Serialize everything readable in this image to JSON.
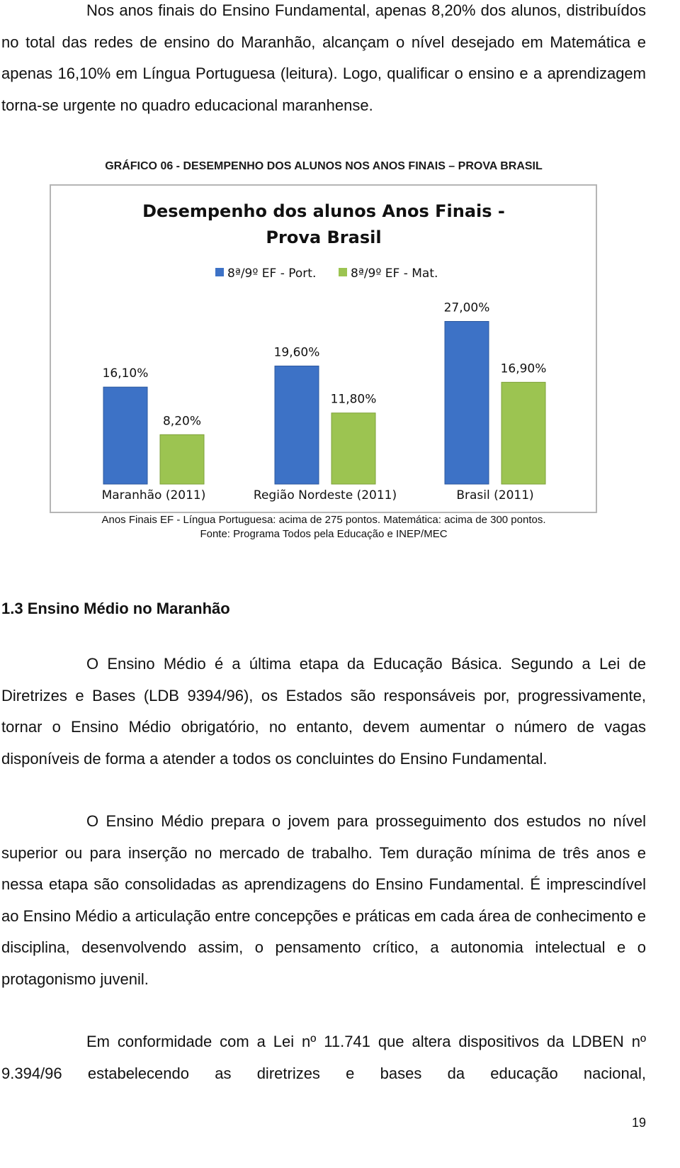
{
  "intro": "Nos anos finais do Ensino Fundamental, apenas 8,20% dos alunos, distribuídos no total das redes de ensino do Maranhão, alcançam o nível desejado em Matemática e apenas 16,10% em Língua Portuguesa (leitura). Logo, qualificar o ensino e a aprendizagem torna-se urgente no quadro educacional maranhense.",
  "figure_caption": "GRÁFICO 06 - DESEMPENHO DOS ALUNOS NOS ANOS FINAIS – PROVA BRASIL",
  "chart_data": {
    "type": "bar",
    "title": "Desempenho dos alunos  Anos Finais - Prova Brasil",
    "categories": [
      "Maranhão (2011)",
      "Região Nordeste (2011)",
      "Brasil (2011)"
    ],
    "series": [
      {
        "name": "8ª/9º EF - Port.",
        "color": "#3d72c6",
        "values": [
          16.1,
          19.6,
          27.0
        ],
        "value_labels": [
          "16,10%",
          "19,60%",
          "27,00%"
        ]
      },
      {
        "name": "8ª/9º EF - Mat.",
        "color": "#9cc451",
        "values": [
          8.2,
          11.8,
          16.9
        ],
        "value_labels": [
          "8,20%",
          "11,80%",
          "16,90%"
        ]
      }
    ]
  },
  "figure_notes": [
    "Anos Finais EF - Língua Portuguesa: acima de 275 pontos. Matemática: acima de 300 pontos.",
    "Fonte: Programa Todos pela Educação e INEP/MEC"
  ],
  "section_heading": "1.3 Ensino Médio no Maranhão",
  "body": [
    "O Ensino Médio é a última etapa da Educação Básica. Segundo a Lei de Diretrizes e Bases (LDB 9394/96), os Estados são responsáveis por, progressivamente, tornar o Ensino Médio obrigatório, no entanto, devem aumentar o número de vagas disponíveis de forma a atender a todos os concluintes do Ensino Fundamental.",
    "O Ensino Médio prepara o jovem para prosseguimento dos estudos no nível superior ou para inserção no mercado de trabalho. Tem duração mínima de três anos e nessa etapa são consolidadas as aprendizagens do Ensino Fundamental. É imprescindível ao Ensino Médio a articulação entre concepções e práticas em cada área de conhecimento e disciplina, desenvolvendo assim, o pensamento crítico, a autonomia intelectual e o protagonismo juvenil.",
    "Em conformidade com a Lei nº 11.741 que altera dispositivos da LDBEN nº 9.394/96 estabelecendo as diretrizes e bases da educação nacional,"
  ],
  "page_number": "19"
}
